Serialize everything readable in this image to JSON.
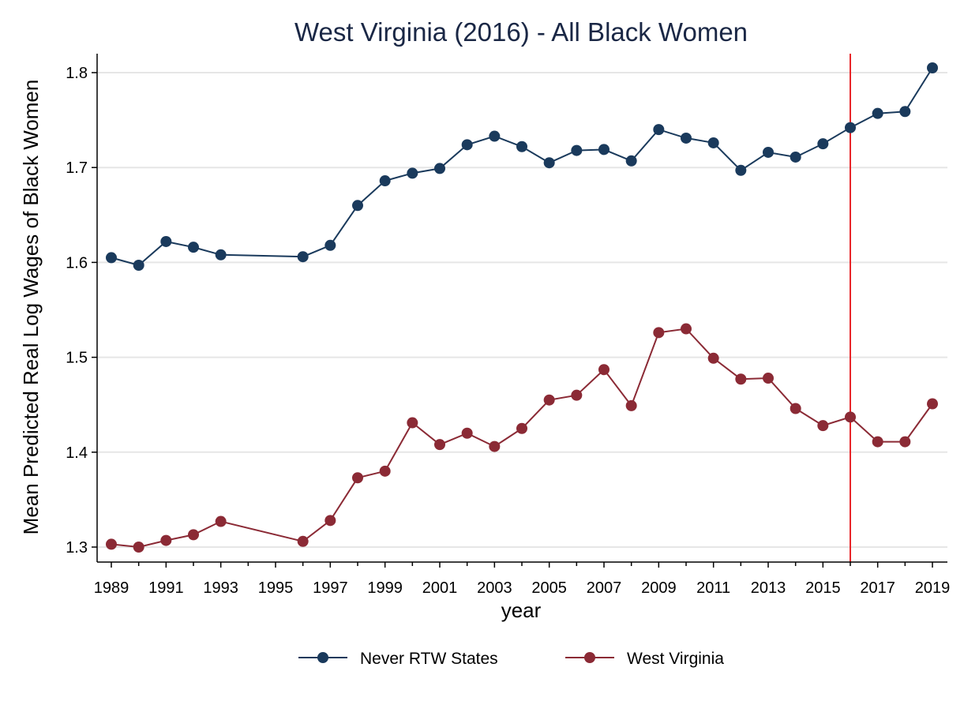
{
  "chart_data": {
    "type": "line",
    "title": "West Virginia (2016) - All Black Women",
    "xlabel": "year",
    "ylabel": "Mean Predicted Real Log Wages of Black Women",
    "xlim": [
      1989,
      2019
    ],
    "ylim": [
      1.3,
      1.8
    ],
    "x_ticks": [
      "1989",
      "1991",
      "1993",
      "1995",
      "1997",
      "1999",
      "2001",
      "2003",
      "2005",
      "2007",
      "2009",
      "2011",
      "2013",
      "2015",
      "2017",
      "2019"
    ],
    "y_ticks": [
      "1.3",
      "1.4",
      "1.5",
      "1.6",
      "1.7",
      "1.8"
    ],
    "grid": "horizontal",
    "legend_position": "bottom",
    "vertical_reference_line": 2016,
    "series": [
      {
        "name": "Never RTW States",
        "color": "#1a3a5c",
        "points": [
          [
            1989,
            1.605
          ],
          [
            1990,
            1.597
          ],
          [
            1991,
            1.622
          ],
          [
            1992,
            1.616
          ],
          [
            1993,
            1.608
          ],
          [
            1996,
            1.606
          ],
          [
            1997,
            1.618
          ],
          [
            1998,
            1.66
          ],
          [
            1999,
            1.686
          ],
          [
            2000,
            1.694
          ],
          [
            2001,
            1.699
          ],
          [
            2002,
            1.724
          ],
          [
            2003,
            1.733
          ],
          [
            2004,
            1.722
          ],
          [
            2005,
            1.705
          ],
          [
            2006,
            1.718
          ],
          [
            2007,
            1.719
          ],
          [
            2008,
            1.707
          ],
          [
            2009,
            1.74
          ],
          [
            2010,
            1.731
          ],
          [
            2011,
            1.726
          ],
          [
            2012,
            1.697
          ],
          [
            2013,
            1.716
          ],
          [
            2014,
            1.711
          ],
          [
            2015,
            1.725
          ],
          [
            2016,
            1.742
          ],
          [
            2017,
            1.757
          ],
          [
            2018,
            1.759
          ],
          [
            2019,
            1.805
          ]
        ]
      },
      {
        "name": "West Virginia",
        "color": "#8b2a35",
        "points": [
          [
            1989,
            1.303
          ],
          [
            1990,
            1.3
          ],
          [
            1991,
            1.307
          ],
          [
            1992,
            1.313
          ],
          [
            1993,
            1.327
          ],
          [
            1996,
            1.306
          ],
          [
            1997,
            1.328
          ],
          [
            1998,
            1.373
          ],
          [
            1999,
            1.38
          ],
          [
            2000,
            1.431
          ],
          [
            2001,
            1.408
          ],
          [
            2002,
            1.42
          ],
          [
            2003,
            1.406
          ],
          [
            2004,
            1.425
          ],
          [
            2005,
            1.455
          ],
          [
            2006,
            1.46
          ],
          [
            2007,
            1.487
          ],
          [
            2008,
            1.449
          ],
          [
            2009,
            1.526
          ],
          [
            2010,
            1.53
          ],
          [
            2011,
            1.499
          ],
          [
            2012,
            1.477
          ],
          [
            2013,
            1.478
          ],
          [
            2014,
            1.446
          ],
          [
            2015,
            1.428
          ],
          [
            2016,
            1.437
          ],
          [
            2017,
            1.411
          ],
          [
            2018,
            1.411
          ],
          [
            2019,
            1.451
          ]
        ]
      }
    ]
  },
  "colors": {
    "gridline": "#e6e6e6",
    "axis": "#000000",
    "reference_line": "#e8262a"
  }
}
